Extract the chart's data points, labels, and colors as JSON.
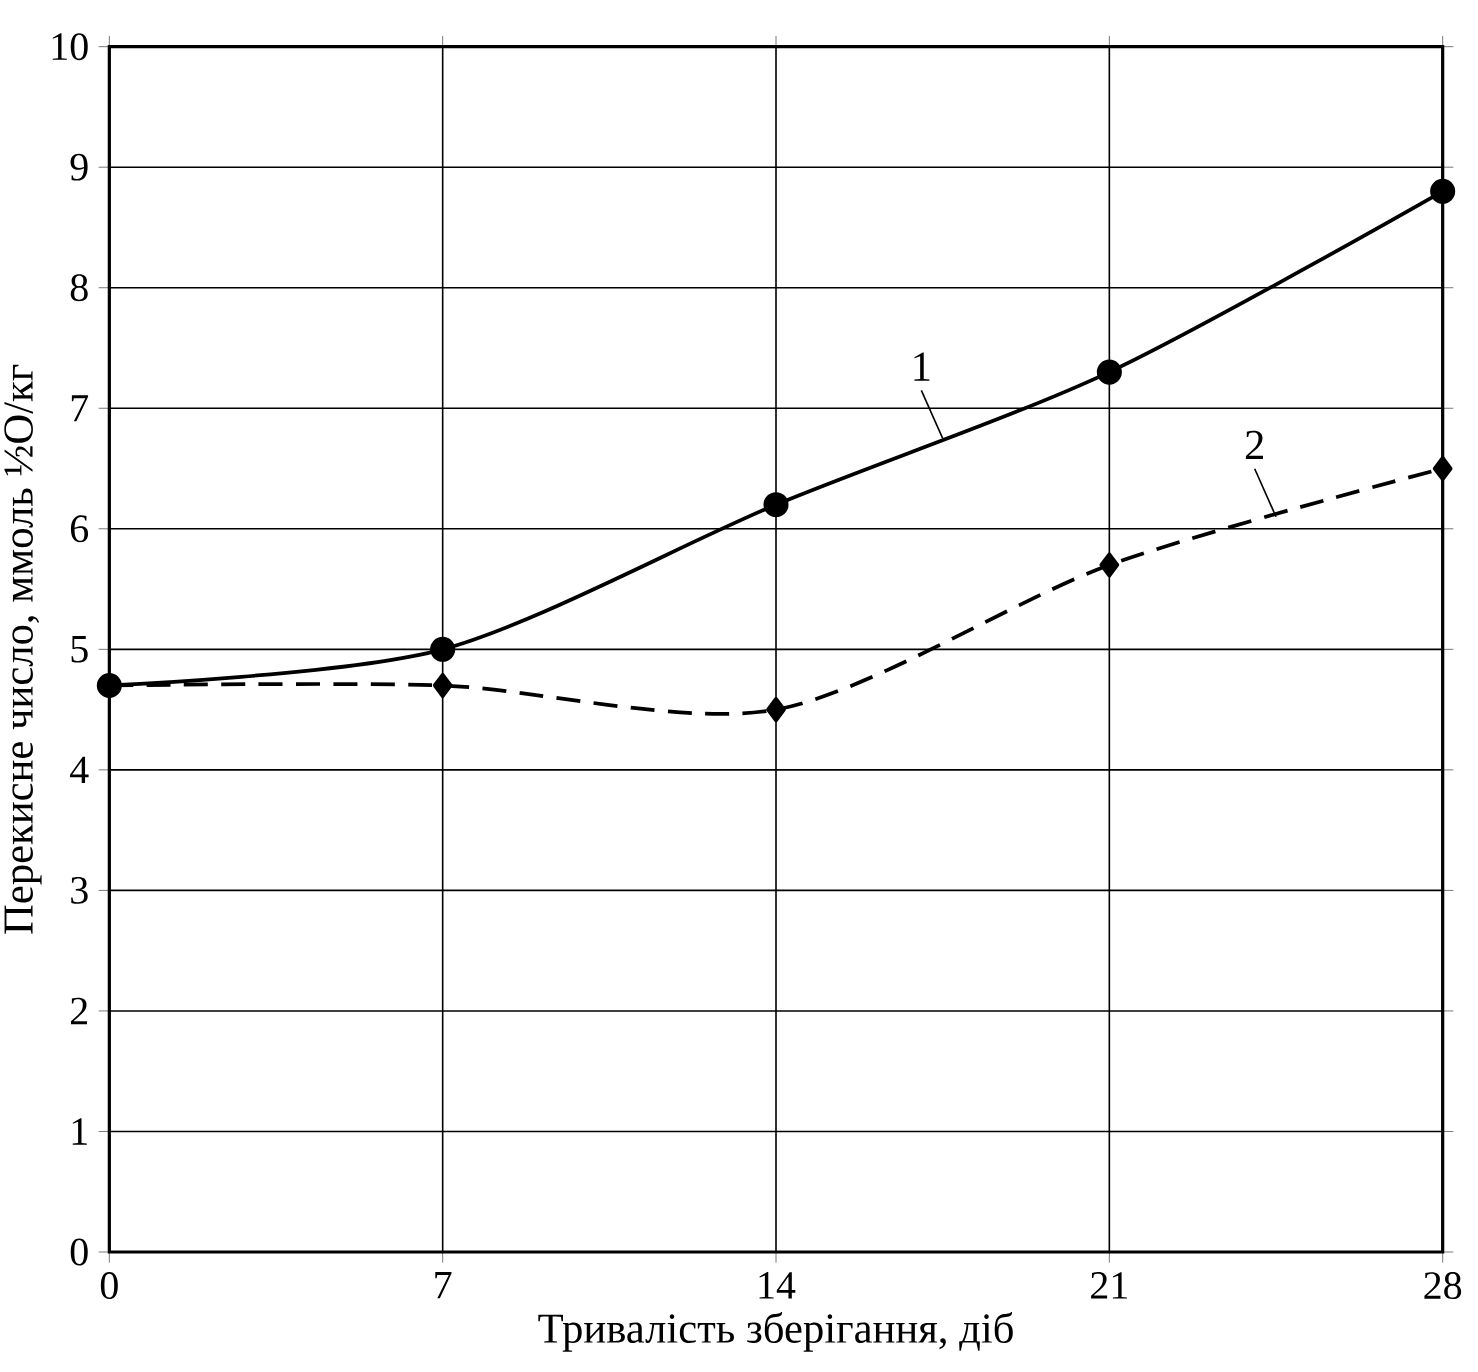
{
  "chart_data": {
    "type": "line",
    "xlabel": "Тривалість зберігання, діб",
    "ylabel": "Перекисне число, ммоль ½O/кг",
    "x": [
      0,
      7,
      14,
      21,
      28
    ],
    "series": [
      {
        "name": "1",
        "color": "#000000",
        "values": [
          4.7,
          5.0,
          6.2,
          7.3,
          8.8
        ],
        "marker": "circle",
        "line_style": "solid"
      },
      {
        "name": "2",
        "color": "#000000",
        "values": [
          4.7,
          4.7,
          4.5,
          5.7,
          6.5
        ],
        "marker": "diamond",
        "line_style": "dashed"
      }
    ],
    "xlim": [
      0,
      28
    ],
    "ylim": [
      0,
      10
    ],
    "xticks": [
      0,
      7,
      14,
      21,
      28
    ],
    "yticks": [
      0,
      1,
      2,
      3,
      4,
      5,
      6,
      7,
      8,
      9,
      10
    ],
    "grid": true,
    "legend": false
  }
}
